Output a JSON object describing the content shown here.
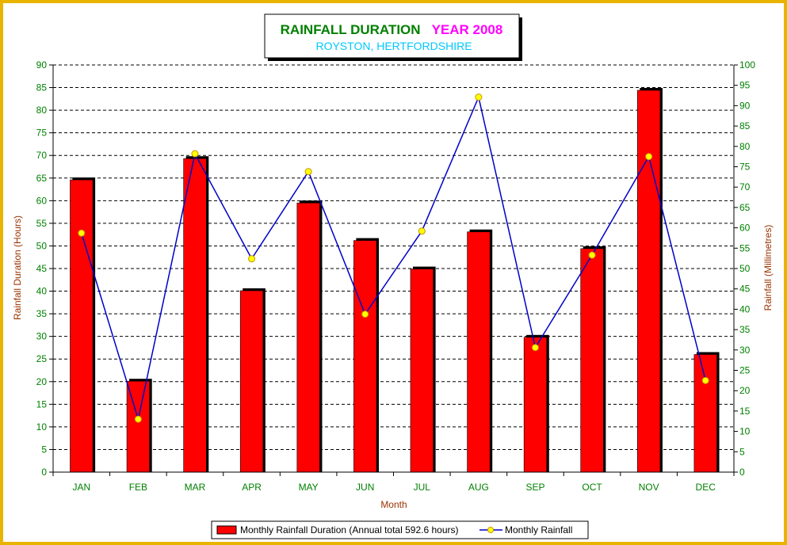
{
  "title": {
    "main": "RAINFALL DURATION",
    "year": "YEAR 2008",
    "location": "ROYSTON, HERTFORDSHIRE"
  },
  "colors": {
    "frame": "#e8b400",
    "bar": "#ff0000",
    "bar_shadow": "#000000",
    "line": "#0000c8",
    "marker": "#ffff00",
    "axis_text": "#008000",
    "axis_label": "#993300",
    "title_main": "#008000",
    "title_year": "#ff00ff",
    "title_location": "#00c8ff"
  },
  "chart_data": {
    "type": "bar",
    "categories": [
      "JAN",
      "FEB",
      "MAR",
      "APR",
      "MAY",
      "JUN",
      "JUL",
      "AUG",
      "SEP",
      "OCT",
      "NOV",
      "DEC"
    ],
    "xlabel": "Month",
    "ylabel_left": "Rainfall Duration (Hours)",
    "ylabel_right": "Rainfall (Millimetres)",
    "ylim_left": [
      0,
      90
    ],
    "ylim_right": [
      0,
      100
    ],
    "left_ticks": [
      0,
      5,
      10,
      15,
      20,
      25,
      30,
      35,
      40,
      45,
      50,
      55,
      60,
      65,
      70,
      75,
      80,
      85,
      90
    ],
    "right_ticks": [
      0,
      5,
      10,
      15,
      20,
      25,
      30,
      35,
      40,
      45,
      50,
      55,
      60,
      65,
      70,
      75,
      80,
      85,
      90,
      95,
      100
    ],
    "grid": "horizontal-dashed",
    "legend_position": "bottom",
    "series": [
      {
        "name": "Monthly Rainfall Duration (Annual total 592.6 hours)",
        "type": "bar",
        "axis": "left",
        "values": [
          64.6,
          20.1,
          69.3,
          40.1,
          59.5,
          51.2,
          44.9,
          53.1,
          29.8,
          49.4,
          84.4,
          26.0
        ]
      },
      {
        "name": "Monthly Rainfall",
        "type": "line",
        "axis": "right",
        "values": [
          58.7,
          13.0,
          78.2,
          52.4,
          73.8,
          38.8,
          59.2,
          92.1,
          30.6,
          53.3,
          77.5,
          22.5
        ]
      }
    ]
  }
}
